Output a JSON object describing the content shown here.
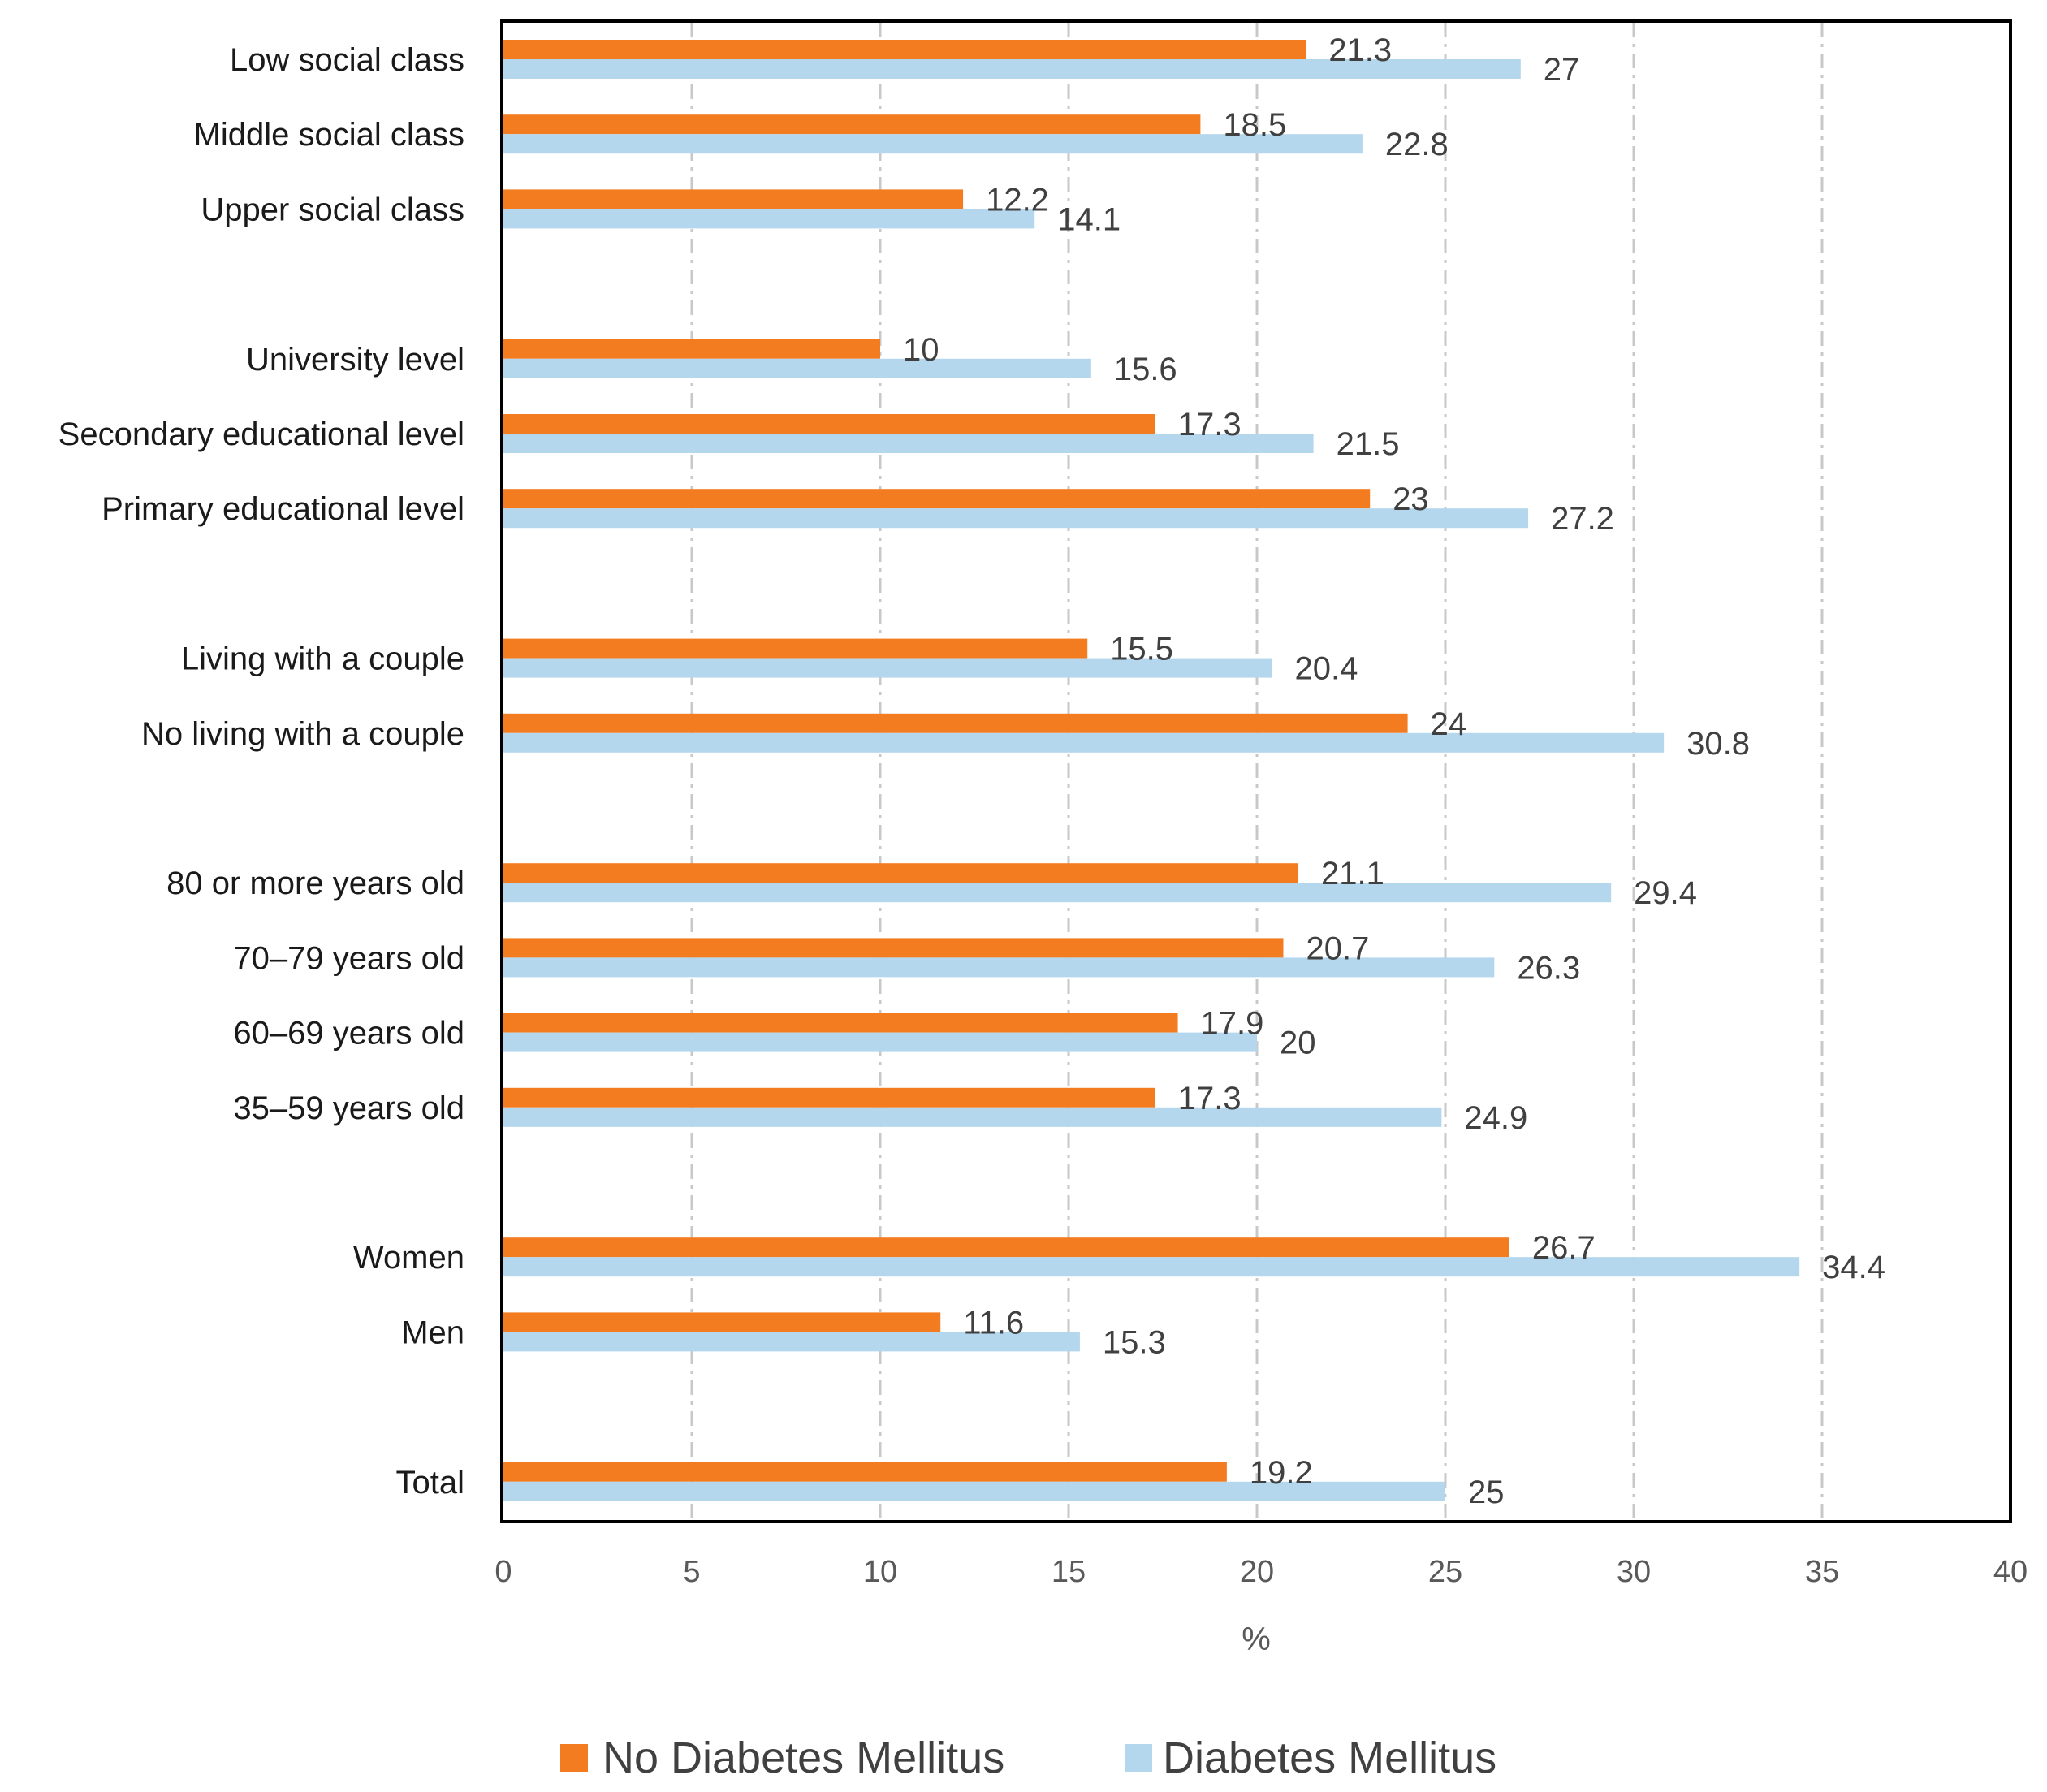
{
  "chart_data": {
    "type": "bar",
    "orientation": "horizontal",
    "title": "",
    "xlabel": "%",
    "ylabel": "",
    "xlim": [
      0,
      40
    ],
    "xticks": [
      0,
      5,
      10,
      15,
      20,
      25,
      30,
      35,
      40
    ],
    "grid": true,
    "legend_position": "bottom",
    "categories": [
      "Low social class",
      "Middle social class",
      "Upper social class",
      "",
      "University level",
      "Secondary educational level",
      "Primary educational level",
      "",
      "Living with a couple",
      "No living with a couple",
      "",
      "80 or more years old",
      "70–79 years old",
      "60–69 years old",
      "35–59 years old",
      "",
      "Women",
      "Men",
      "",
      "Total"
    ],
    "series": [
      {
        "name": "No Diabetes Mellitus",
        "color": "#f47c20",
        "values": [
          21.3,
          18.5,
          12.2,
          null,
          10,
          17.3,
          23,
          null,
          15.5,
          24,
          null,
          21.1,
          20.7,
          17.9,
          17.3,
          null,
          26.7,
          11.6,
          null,
          19.2
        ],
        "labels": [
          "21.3",
          "18.5",
          "12.2",
          "",
          "10",
          "17.3",
          "23",
          "",
          "15.5",
          "24",
          "",
          "21.1",
          "20.7",
          "17.9",
          "17.3",
          "",
          "26.7",
          "11.6",
          "",
          "19.2"
        ]
      },
      {
        "name": "Diabetes Mellitus",
        "color": "#b4d7ee",
        "values": [
          27,
          22.8,
          14.1,
          null,
          15.6,
          21.5,
          27.2,
          null,
          20.4,
          30.8,
          null,
          29.4,
          26.3,
          20,
          24.9,
          null,
          34.4,
          15.3,
          null,
          25
        ],
        "labels": [
          "27",
          "22.8",
          "14.1",
          "",
          "15.6",
          "21.5",
          "27.2",
          "",
          "20.4",
          "30.8",
          "",
          "29.4",
          "26.3",
          "20",
          "24.9",
          "",
          "34.4",
          "15.3",
          "",
          "25"
        ]
      }
    ]
  }
}
